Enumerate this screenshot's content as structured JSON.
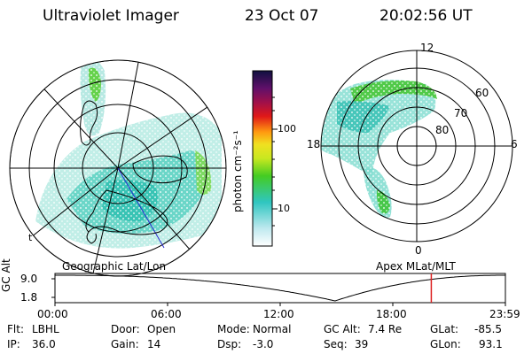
{
  "header": {
    "instrument": "Ultraviolet Imager",
    "date": "23 Oct 07",
    "time": "20:02:56 UT"
  },
  "colorbar": {
    "label": "photon cm⁻²s⁻¹",
    "ticks": [
      "100",
      "10"
    ]
  },
  "left_map": {
    "label": "Geographic Lat/Lon",
    "corner_mark": "t"
  },
  "right_map": {
    "label": "Apex MLat/MLT",
    "mlt_labels": {
      "top": "12",
      "bottom": "0",
      "left": "18",
      "right": "6"
    },
    "lat_labels": [
      "60",
      "70",
      "80"
    ]
  },
  "timeline": {
    "ylabel": "GC Alt",
    "y_ticks": [
      "9.0",
      "1.8"
    ],
    "x_ticks": [
      "00:00",
      "06:00",
      "12:00",
      "18:00",
      "23:59"
    ],
    "current_time_fraction": 0.8355
  },
  "info": {
    "filter_label": "Flt:",
    "filter_value": "LBHL",
    "ip_label": "IP:",
    "ip_value": "36.0",
    "door_label": "Door:",
    "door_value": "Open",
    "gain_label": "Gain:",
    "gain_value": "14",
    "mode_label": "Mode:",
    "mode_value": "Normal",
    "dsp_label": "Dsp:",
    "dsp_value": "-3.0",
    "gcalt_label": "GC Alt:",
    "gcalt_value": "7.4 Re",
    "seq_label": "Seq:",
    "seq_value": "39",
    "glat_label": "GLat:",
    "glat_value": "-85.5",
    "glon_label": "GLon:",
    "glon_value": "93.1"
  },
  "colors": {
    "aurora_cyan": "#66d9c4",
    "aurora_green": "#44cc22",
    "marker_red": "#dd2020"
  }
}
